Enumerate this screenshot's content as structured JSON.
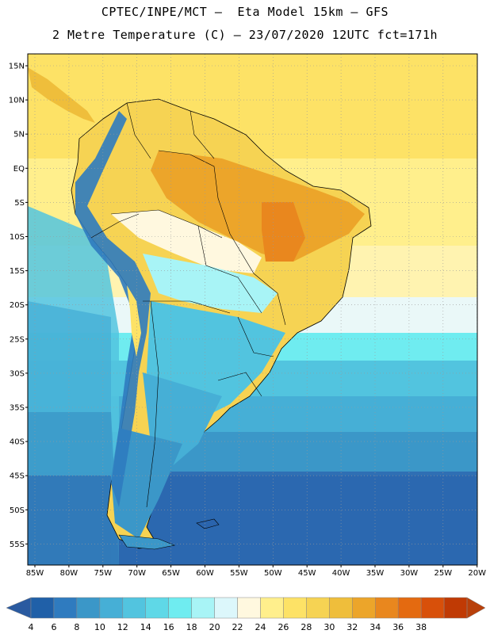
{
  "header": {
    "line1": "CPTEC/INPE/MCT –  Eta Model 15km – GFS",
    "line2": "2 Metre Temperature (C) – 23/07/2020 12UTC fct=171h"
  },
  "map": {
    "lat_labels": [
      "15N",
      "10N",
      "5N",
      "EQ",
      "5S",
      "10S",
      "15S",
      "20S",
      "25S",
      "30S",
      "35S",
      "40S",
      "45S",
      "50S",
      "55S"
    ],
    "lon_labels": [
      "85W",
      "80W",
      "75W",
      "70W",
      "65W",
      "60W",
      "55W",
      "50W",
      "45W",
      "40W",
      "35W",
      "30W",
      "25W",
      "20W"
    ]
  },
  "legend": {
    "labels": [
      "4",
      "6",
      "8",
      "10",
      "12",
      "14",
      "16",
      "18",
      "20",
      "22",
      "24",
      "26",
      "28",
      "30",
      "32",
      "34",
      "36",
      "38"
    ],
    "colors": [
      "#2060a8",
      "#2f7bbf",
      "#3b97c8",
      "#46afd6",
      "#52c4df",
      "#5fd8e7",
      "#6fecf0",
      "#a8f4f6",
      "#dcf7fb",
      "#fff8df",
      "#ffef8c",
      "#fde266",
      "#f6d353",
      "#efbe3b",
      "#eca52a",
      "#e9871e",
      "#e46a10",
      "#d8500a",
      "#c03a04"
    ],
    "low_color": "#2a5aa0",
    "high_color": "#b8400a"
  }
}
